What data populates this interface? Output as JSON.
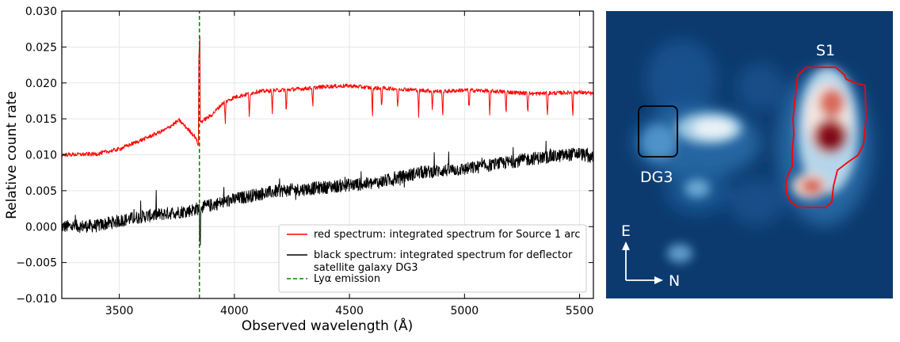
{
  "chart_data": [
    {
      "type": "line",
      "title": "",
      "xlabel": "Observed wavelength (Å)",
      "ylabel": "Relative count rate",
      "xlim": [
        3250,
        5560
      ],
      "ylim": [
        -0.01,
        0.03
      ],
      "grid": true,
      "xticks": [
        3500,
        4000,
        4500,
        5000,
        5500
      ],
      "xtick_labels": [
        "3500",
        "4000",
        "4500",
        "5000",
        "5500"
      ],
      "yticks": [
        -0.01,
        -0.005,
        0.0,
        0.005,
        0.01,
        0.015,
        0.02,
        0.025,
        0.03
      ],
      "ytick_labels": [
        "−0.010",
        "−0.005",
        "0.000",
        "0.005",
        "0.010",
        "0.015",
        "0.020",
        "0.025",
        "0.030"
      ],
      "legend_position": "bottom-right",
      "series": [
        {
          "name": "red spectrum: integrated spectrum for Source 1 arc",
          "legend_lines": [
            "red spectrum: integrated spectrum for Source 1 arc"
          ],
          "color": "#ff0000",
          "style": "solid",
          "x": [
            3250,
            3400,
            3500,
            3600,
            3700,
            3760,
            3800,
            3830,
            3845,
            3850,
            3900,
            3950,
            4000,
            4100,
            4200,
            4300,
            4400,
            4500,
            4600,
            4700,
            4800,
            4900,
            5000,
            5100,
            5200,
            5300,
            5400,
            5500,
            5560
          ],
          "y": [
            0.01,
            0.0101,
            0.0108,
            0.0121,
            0.0135,
            0.0148,
            0.0135,
            0.0125,
            0.0112,
            0.0145,
            0.0155,
            0.0172,
            0.018,
            0.0188,
            0.019,
            0.0192,
            0.0195,
            0.0196,
            0.0193,
            0.0192,
            0.019,
            0.0188,
            0.019,
            0.0189,
            0.0187,
            0.0185,
            0.0186,
            0.0187,
            0.0185
          ]
        },
        {
          "name": "black spectrum: integrated spectrum for deflector satellite galaxy DG3",
          "legend_lines": [
            "black spectrum: integrated spectrum for deflector",
            "satellite galaxy DG3"
          ],
          "color": "#000000",
          "style": "solid",
          "x": [
            3250,
            3400,
            3500,
            3600,
            3700,
            3800,
            3900,
            4000,
            4100,
            4200,
            4300,
            4400,
            4500,
            4600,
            4700,
            4800,
            4900,
            5000,
            5100,
            5200,
            5300,
            5400,
            5500,
            5560
          ],
          "y": [
            0.0,
            0.0001,
            0.0008,
            0.0014,
            0.0018,
            0.0022,
            0.003,
            0.0038,
            0.0045,
            0.005,
            0.0052,
            0.0055,
            0.0058,
            0.006,
            0.0067,
            0.0075,
            0.0078,
            0.008,
            0.0085,
            0.009,
            0.0095,
            0.0098,
            0.0102,
            0.0095
          ]
        },
        {
          "name": "Lyα emission",
          "legend_lines": [
            "Lyα emission"
          ],
          "color": "#008000",
          "style": "dashed",
          "x": [
            3848,
            3848
          ],
          "y": [
            -0.01,
            0.03
          ]
        }
      ]
    },
    {
      "type": "heatmap",
      "title": "",
      "colormap": "RdBu_r",
      "annotations": [
        {
          "text": "S1",
          "kind": "source arc contour",
          "color": "#ff0000"
        },
        {
          "text": "DG3",
          "kind": "satellite galaxy box",
          "color": "#000000"
        }
      ],
      "compass": {
        "up": "E",
        "right": "N"
      },
      "sources": [
        {
          "name": "DG3 core",
          "intensity": 0.45
        },
        {
          "name": "bright blob right of DG3",
          "intensity": 0.7
        },
        {
          "name": "S1 upper arc",
          "intensity": 0.85
        },
        {
          "name": "S1 peak",
          "intensity": 1.0
        },
        {
          "name": "S1 lower knot",
          "intensity": 0.8
        },
        {
          "name": "faint knot lower-left",
          "intensity": 0.35
        }
      ]
    }
  ]
}
